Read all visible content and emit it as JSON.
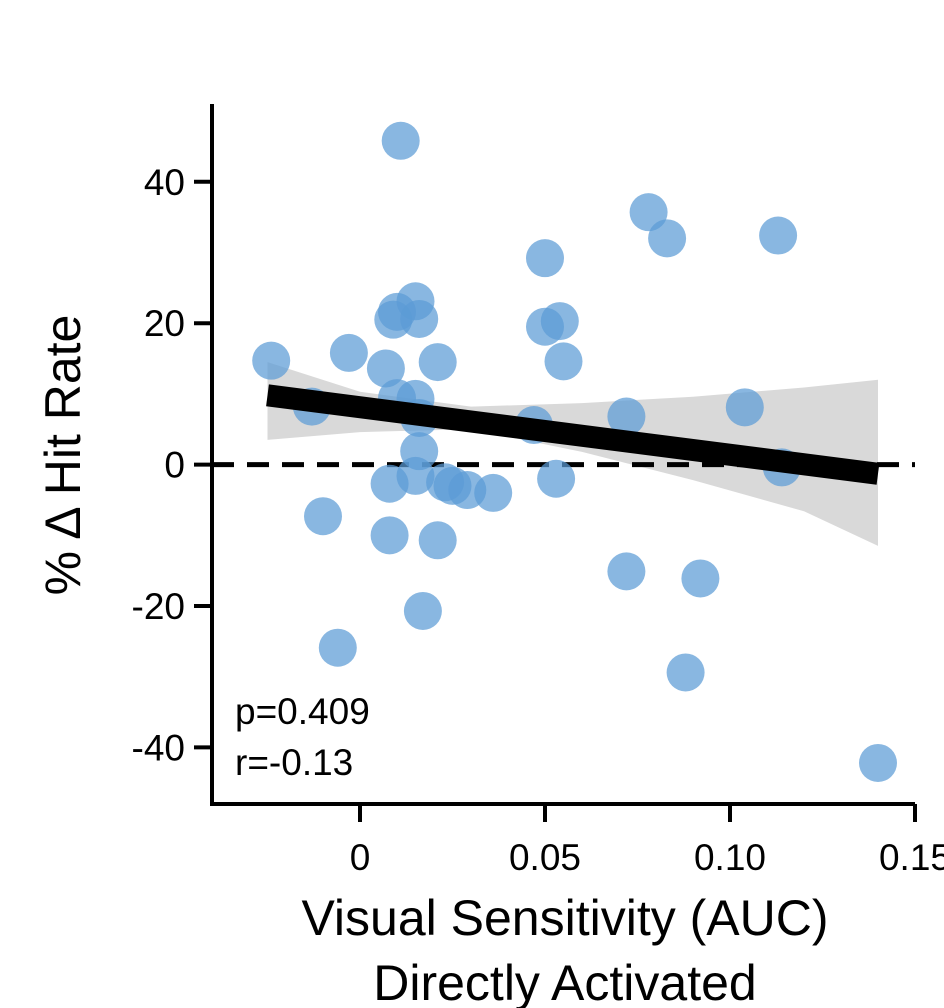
{
  "chart_data": {
    "type": "scatter",
    "xlabel": "Visual Sensitivity (AUC)",
    "xlabel_line2": "Directly Activated",
    "ylabel": "% Δ Hit Rate",
    "xlim": [
      -0.04,
      0.15
    ],
    "ylim": [
      -48,
      51
    ],
    "x_ticks": [
      0,
      0.05,
      0.1,
      0.15
    ],
    "x_tick_labels": [
      "0",
      "0.05",
      "0.10",
      "0.15"
    ],
    "y_ticks": [
      40,
      20,
      0,
      -20,
      -40
    ],
    "y_tick_labels": [
      "40",
      "20",
      "0",
      "-20",
      "-40"
    ],
    "annotations": {
      "p": "p=0.409",
      "r": "r=-0.13"
    },
    "colors": {
      "points": "#5b9bd5",
      "fit_line": "#000000",
      "confidence_band": "#d9d9d9",
      "zero_line": "#000000"
    },
    "zero_line": {
      "y": 0,
      "style": "dashed"
    },
    "fit_line": {
      "x": [
        -0.025,
        0.14
      ],
      "y": [
        9.8,
        -1.3
      ]
    },
    "confidence_band": {
      "x": [
        -0.025,
        0.0,
        0.03,
        0.06,
        0.09,
        0.12,
        0.14
      ],
      "lower": [
        3.5,
        4.6,
        5.0,
        1.8,
        -2.2,
        -6.6,
        -11.5
      ],
      "upper": [
        14.5,
        10.3,
        8.2,
        8.7,
        9.6,
        10.9,
        12.0
      ]
    },
    "points": [
      {
        "x": 0.011,
        "y": 45.8
      },
      {
        "x": 0.078,
        "y": 35.7
      },
      {
        "x": 0.083,
        "y": 32.0
      },
      {
        "x": 0.113,
        "y": 32.4
      },
      {
        "x": 0.05,
        "y": 29.2
      },
      {
        "x": 0.015,
        "y": 23.1
      },
      {
        "x": 0.01,
        "y": 21.6
      },
      {
        "x": 0.009,
        "y": 20.5
      },
      {
        "x": 0.016,
        "y": 20.6
      },
      {
        "x": 0.054,
        "y": 20.3
      },
      {
        "x": 0.05,
        "y": 19.5
      },
      {
        "x": -0.024,
        "y": 14.7
      },
      {
        "x": -0.003,
        "y": 15.8
      },
      {
        "x": 0.021,
        "y": 14.5
      },
      {
        "x": 0.055,
        "y": 14.6
      },
      {
        "x": 0.007,
        "y": 13.6
      },
      {
        "x": 0.01,
        "y": 9.4
      },
      {
        "x": 0.015,
        "y": 9.3
      },
      {
        "x": -0.013,
        "y": 8.2
      },
      {
        "x": 0.016,
        "y": 6.6
      },
      {
        "x": 0.072,
        "y": 6.8
      },
      {
        "x": 0.104,
        "y": 8.1
      },
      {
        "x": 0.047,
        "y": 5.6
      },
      {
        "x": 0.016,
        "y": 1.9
      },
      {
        "x": 0.114,
        "y": -0.4
      },
      {
        "x": 0.015,
        "y": -1.6
      },
      {
        "x": 0.053,
        "y": -2.0
      },
      {
        "x": 0.008,
        "y": -2.7
      },
      {
        "x": 0.023,
        "y": -2.5
      },
      {
        "x": 0.025,
        "y": -3.0
      },
      {
        "x": 0.029,
        "y": -3.6
      },
      {
        "x": 0.036,
        "y": -4.0
      },
      {
        "x": -0.01,
        "y": -7.3
      },
      {
        "x": 0.008,
        "y": -10.0
      },
      {
        "x": 0.021,
        "y": -10.7
      },
      {
        "x": 0.072,
        "y": -15.1
      },
      {
        "x": 0.092,
        "y": -16.1
      },
      {
        "x": 0.017,
        "y": -20.7
      },
      {
        "x": -0.006,
        "y": -25.9
      },
      {
        "x": 0.088,
        "y": -29.4
      },
      {
        "x": 0.14,
        "y": -42.2
      }
    ]
  }
}
